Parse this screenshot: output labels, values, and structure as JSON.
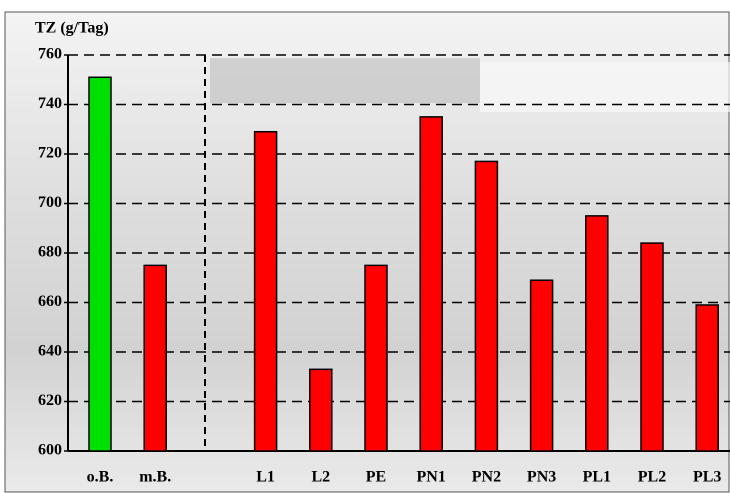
{
  "chart_data": {
    "type": "bar",
    "title": "TZ (g/Tag)",
    "categories": [
      "o.B.",
      "m.B.",
      null,
      "L1",
      "L2",
      "PE",
      "PN1",
      "PN2",
      "PN3",
      "PL1",
      "PL2",
      "PL3"
    ],
    "values": [
      751,
      675,
      null,
      729,
      633,
      675,
      735,
      717,
      669,
      695,
      684,
      659
    ],
    "colors": [
      "#00e000",
      "#ff0000",
      null,
      "#ff0000",
      "#ff0000",
      "#ff0000",
      "#ff0000",
      "#ff0000",
      "#ff0000",
      "#ff0000",
      "#ff0000",
      "#ff0000"
    ],
    "ylim": [
      600,
      760
    ],
    "yticks": [
      600,
      620,
      640,
      660,
      680,
      700,
      720,
      740,
      760
    ],
    "grid": true
  }
}
